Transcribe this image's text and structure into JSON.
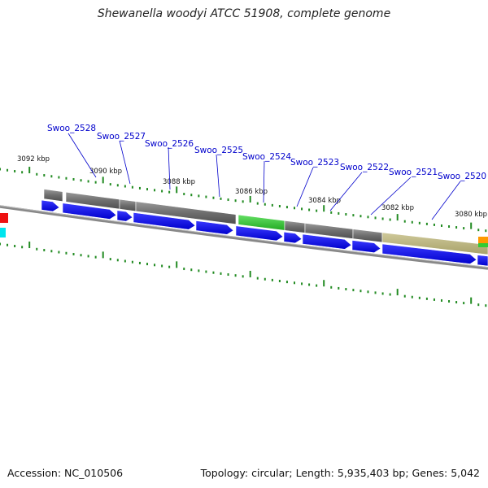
{
  "title": "Shewanella woodyi ATCC 51908, complete genome",
  "footer": {
    "accession": "Accession: NC_010506",
    "summary": "Topology: circular; Length: 5,935,403 bp; Genes: 5,042"
  },
  "kbp_markers": [
    "3092 kbp",
    "3090 kbp",
    "3088 kbp",
    "3086 kbp",
    "3084 kbp",
    "3082 kbp",
    "3080 kbp"
  ],
  "genes": [
    {
      "name": "Swoo_2528"
    },
    {
      "name": "Swoo_2527"
    },
    {
      "name": "Swoo_2526"
    },
    {
      "name": "Swoo_2525"
    },
    {
      "name": "Swoo_2524"
    },
    {
      "name": "Swoo_2523"
    },
    {
      "name": "Swoo_2522"
    },
    {
      "name": "Swoo_2521"
    },
    {
      "name": "Swoo_2520"
    }
  ],
  "colors": {
    "cds": "#0000ee",
    "gene_gray": "#6b6b6b",
    "gene_green": "#33cc33",
    "gene_olive": "#b5b07a",
    "gene_orange": "#ff9900",
    "backbone": "#888888",
    "ticks": "#228b22",
    "label": "#0000cc"
  }
}
